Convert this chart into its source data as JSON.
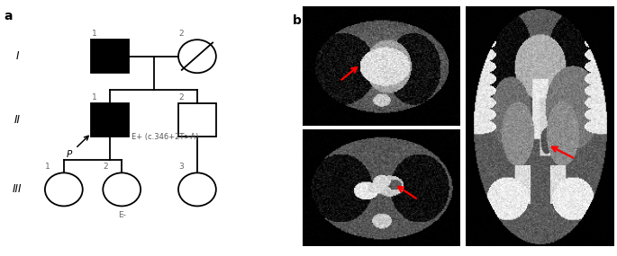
{
  "panel_a_label": "a",
  "panel_b_label": "b",
  "background_color": "#ffffff",
  "line_color": "#000000",
  "fill_affected": "#000000",
  "fill_unaffected": "#ffffff",
  "generation_labels": [
    "I",
    "II",
    "III"
  ],
  "proband_label": "P",
  "annotation_text": "E+ (c.346+2T>A)",
  "e_minus_label": "E-",
  "num_labels_I": [
    "1",
    "2"
  ],
  "num_labels_II": [
    "1",
    "2"
  ],
  "num_labels_III": [
    "1",
    "2",
    "3"
  ]
}
